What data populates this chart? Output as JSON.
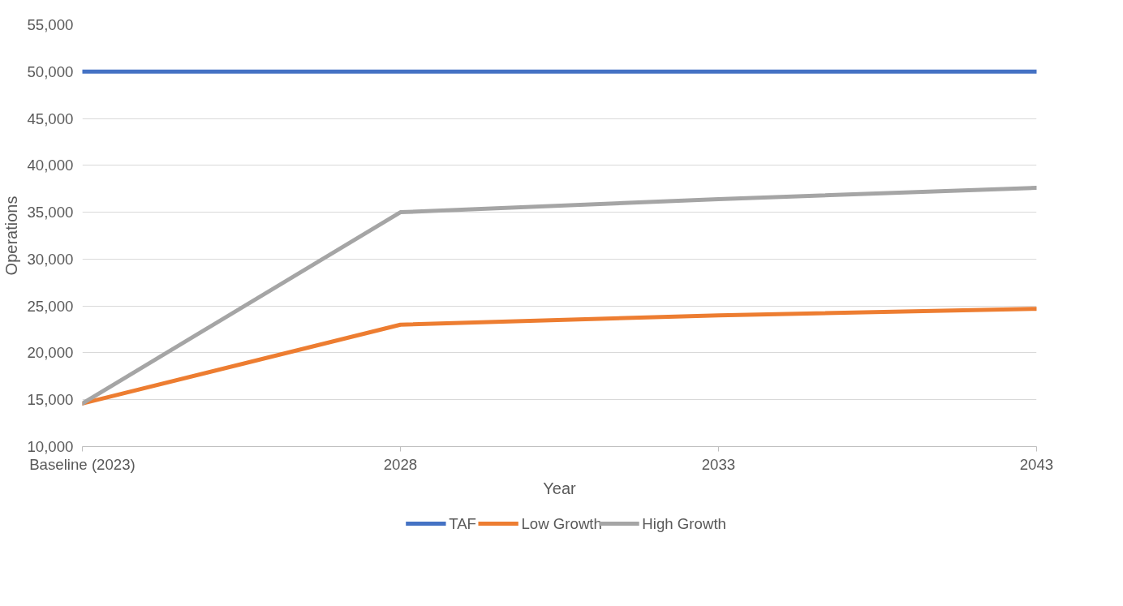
{
  "chart_data": {
    "type": "line",
    "xlabel": "Year",
    "ylabel": "Operations",
    "categories": [
      "Baseline (2023)",
      "2028",
      "2033",
      "2043"
    ],
    "series": [
      {
        "name": "TAF",
        "color": "#4472c4",
        "values": [
          50000,
          50000,
          50000,
          50000
        ]
      },
      {
        "name": "Low Growth",
        "color": "#ed7d31",
        "values": [
          14600,
          23000,
          24000,
          24700
        ]
      },
      {
        "name": "High Growth",
        "color": "#a5a5a5",
        "values": [
          14600,
          35000,
          36400,
          37600
        ]
      }
    ],
    "ylim": [
      10000,
      55000
    ],
    "yticks": [
      {
        "value": 10000,
        "label": "10,000"
      },
      {
        "value": 15000,
        "label": "15,000"
      },
      {
        "value": 20000,
        "label": "20,000"
      },
      {
        "value": 25000,
        "label": "25,000"
      },
      {
        "value": 30000,
        "label": "30,000"
      },
      {
        "value": 35000,
        "label": "35,000"
      },
      {
        "value": 40000,
        "label": "40,000"
      },
      {
        "value": 45000,
        "label": "45,000"
      },
      {
        "value": 50000,
        "label": "50,000"
      },
      {
        "value": 55000,
        "label": "55,000"
      }
    ],
    "grid": "y",
    "legend": "bottom",
    "marker": "none",
    "line_style": "solid"
  }
}
